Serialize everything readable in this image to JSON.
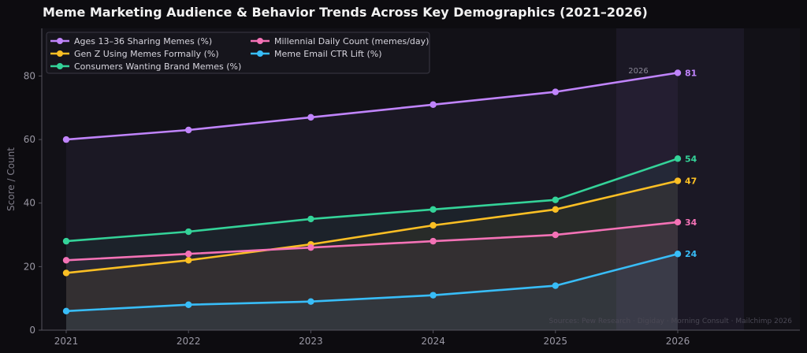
{
  "chart_data": {
    "type": "line",
    "title": "Meme Marketing Audience & Behavior Trends Across Key Demographics (2021–2026)",
    "ylabel": "Score / Count",
    "xlabel": "",
    "x": [
      "2021",
      "2022",
      "2023",
      "2024",
      "2025",
      "2026"
    ],
    "ylim": [
      0,
      95
    ],
    "yticks": [
      0,
      20,
      40,
      60,
      80
    ],
    "grid": false,
    "legend_position": "top-left",
    "highlight": {
      "label": "2026",
      "category": "2026"
    },
    "source": "Sources: Pew Research · Digiday · Morning Consult · Mailchimp 2026",
    "series": [
      {
        "name": "Ages 13–36 Sharing Memes (%)",
        "color": "#c084fc",
        "values": [
          60,
          63,
          67,
          71,
          75,
          81
        ],
        "end_label": "81"
      },
      {
        "name": "Gen Z Using Memes Formally (%)",
        "color": "#fbbf24",
        "values": [
          18,
          22,
          27,
          33,
          38,
          47
        ],
        "end_label": "47"
      },
      {
        "name": "Consumers Wanting Brand Memes (%)",
        "color": "#34d399",
        "values": [
          28,
          31,
          35,
          38,
          41,
          54
        ],
        "end_label": "54"
      },
      {
        "name": "Millennial Daily Count (memes/day)",
        "color": "#f472b6",
        "values": [
          22,
          24,
          26,
          28,
          30,
          34
        ],
        "end_label": "34"
      },
      {
        "name": "Meme Email CTR Lift (%)",
        "color": "#38bdf8",
        "values": [
          6,
          8,
          9,
          11,
          14,
          24
        ],
        "end_label": "24"
      }
    ]
  }
}
